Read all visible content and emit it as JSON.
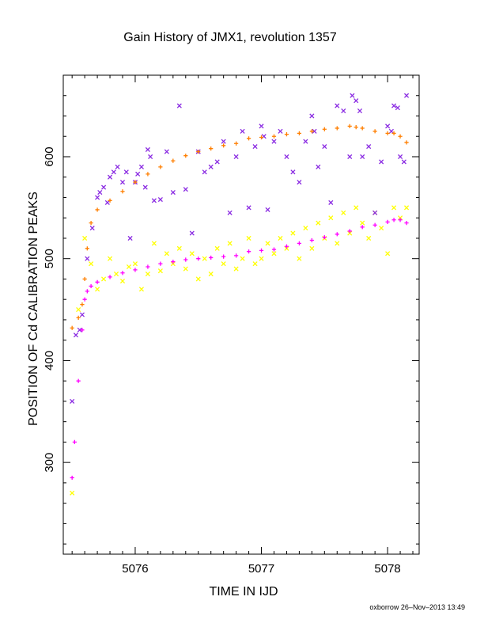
{
  "chart_data": {
    "type": "scatter",
    "title": "Gain History of JMX1, revolution 1357",
    "xlabel": "TIME IN IJD",
    "ylabel": "POSITION OF Cd CALIBRATION PEAKS",
    "xlim": [
      5075.43,
      5078.25
    ],
    "ylim": [
      210,
      680
    ],
    "xticks": [
      "5076",
      "5077",
      "5078"
    ],
    "yticks": [
      "300",
      "400",
      "500",
      "600"
    ],
    "xtick_values": [
      5076,
      5077,
      5078
    ],
    "ytick_values": [
      300,
      400,
      500,
      600
    ],
    "grid": false,
    "legend": "none",
    "footer": "oxborrow 26–Nov–2013 13:49",
    "colors": {
      "orange": "#ff7f00",
      "magenta": "#ff00ff",
      "purple": "#8a2be2",
      "yellow": "#ffff00",
      "axis": "#000000"
    },
    "series": [
      {
        "color": "#ff7f00",
        "marker": "plus",
        "x": [
          5075.5,
          5075.55,
          5075.58,
          5075.6,
          5075.62,
          5075.65,
          5075.7,
          5075.8,
          5075.9,
          5076.0,
          5076.1,
          5076.2,
          5076.3,
          5076.4,
          5076.5,
          5076.6,
          5076.7,
          5076.8,
          5076.9,
          5077.0,
          5077.1,
          5077.2,
          5077.3,
          5077.4,
          5077.5,
          5077.6,
          5077.7,
          5077.75,
          5077.8,
          5077.9,
          5078.0,
          5078.05,
          5078.1,
          5078.15
        ],
        "y": [
          432,
          442,
          455,
          480,
          510,
          535,
          548,
          557,
          566,
          575,
          583,
          590,
          596,
          601,
          605,
          608,
          611,
          613,
          618,
          619,
          620,
          622,
          623,
          625,
          627,
          628,
          630,
          629,
          628,
          625,
          623,
          623,
          620,
          614
        ]
      },
      {
        "color": "#ff00ff",
        "marker": "plus",
        "x": [
          5075.5,
          5075.52,
          5075.55,
          5075.58,
          5075.6,
          5075.62,
          5075.65,
          5075.7,
          5075.8,
          5075.9,
          5076.0,
          5076.1,
          5076.2,
          5076.3,
          5076.4,
          5076.5,
          5076.6,
          5076.7,
          5076.8,
          5076.9,
          5077.0,
          5077.1,
          5077.2,
          5077.3,
          5077.4,
          5077.5,
          5077.6,
          5077.7,
          5077.8,
          5077.9,
          5078.0,
          5078.05,
          5078.1,
          5078.15
        ],
        "y": [
          285,
          320,
          380,
          430,
          460,
          468,
          473,
          477,
          482,
          486,
          489,
          492,
          495,
          497,
          499,
          500,
          501,
          502,
          503,
          507,
          508,
          509,
          512,
          515,
          518,
          521,
          524,
          527,
          531,
          533,
          536,
          538,
          538,
          535
        ]
      },
      {
        "color": "#8a2be2",
        "marker": "cross",
        "x": [
          5075.5,
          5075.53,
          5075.56,
          5075.58,
          5075.62,
          5075.66,
          5075.7,
          5075.72,
          5075.75,
          5075.78,
          5075.8,
          5075.83,
          5075.86,
          5075.9,
          5075.93,
          5075.96,
          5076.0,
          5076.02,
          5076.05,
          5076.08,
          5076.1,
          5076.12,
          5076.15,
          5076.2,
          5076.25,
          5076.3,
          5076.35,
          5076.4,
          5076.45,
          5076.5,
          5076.55,
          5076.6,
          5076.65,
          5076.7,
          5076.75,
          5076.8,
          5076.85,
          5076.9,
          5076.95,
          5077.0,
          5077.02,
          5077.05,
          5077.1,
          5077.15,
          5077.2,
          5077.25,
          5077.3,
          5077.35,
          5077.4,
          5077.42,
          5077.45,
          5077.5,
          5077.55,
          5077.6,
          5077.65,
          5077.7,
          5077.72,
          5077.75,
          5077.78,
          5077.8,
          5077.85,
          5077.9,
          5077.95,
          5078.0,
          5078.03,
          5078.05,
          5078.08,
          5078.1,
          5078.13,
          5078.15
        ],
        "y": [
          360,
          425,
          430,
          445,
          500,
          530,
          560,
          565,
          570,
          555,
          580,
          585,
          590,
          575,
          585,
          520,
          575,
          583,
          590,
          570,
          607,
          600,
          557,
          558,
          605,
          565,
          650,
          568,
          525,
          605,
          585,
          590,
          595,
          615,
          545,
          600,
          625,
          550,
          610,
          630,
          620,
          548,
          615,
          625,
          600,
          585,
          575,
          615,
          640,
          625,
          590,
          610,
          555,
          650,
          645,
          600,
          660,
          655,
          645,
          600,
          610,
          545,
          595,
          630,
          625,
          650,
          648,
          600,
          595,
          660
        ]
      },
      {
        "color": "#ffff00",
        "marker": "cross",
        "x": [
          5075.5,
          5075.55,
          5075.6,
          5075.65,
          5075.7,
          5075.75,
          5075.8,
          5075.85,
          5075.9,
          5075.95,
          5076.0,
          5076.05,
          5076.1,
          5076.15,
          5076.2,
          5076.25,
          5076.3,
          5076.35,
          5076.4,
          5076.45,
          5076.5,
          5076.55,
          5076.6,
          5076.65,
          5076.7,
          5076.75,
          5076.8,
          5076.85,
          5076.9,
          5076.95,
          5077.0,
          5077.05,
          5077.1,
          5077.15,
          5077.2,
          5077.25,
          5077.3,
          5077.35,
          5077.4,
          5077.45,
          5077.5,
          5077.55,
          5077.6,
          5077.65,
          5077.7,
          5077.75,
          5077.8,
          5077.85,
          5077.9,
          5077.95,
          5078.0,
          5078.05,
          5078.1,
          5078.15
        ],
        "y": [
          270,
          450,
          520,
          495,
          470,
          480,
          500,
          485,
          478,
          492,
          495,
          470,
          485,
          515,
          488,
          505,
          495,
          510,
          490,
          505,
          480,
          500,
          485,
          510,
          495,
          515,
          490,
          500,
          520,
          495,
          500,
          515,
          505,
          520,
          510,
          525,
          500,
          530,
          510,
          535,
          520,
          540,
          515,
          545,
          525,
          550,
          535,
          520,
          545,
          530,
          505,
          550,
          540,
          550
        ]
      }
    ]
  }
}
